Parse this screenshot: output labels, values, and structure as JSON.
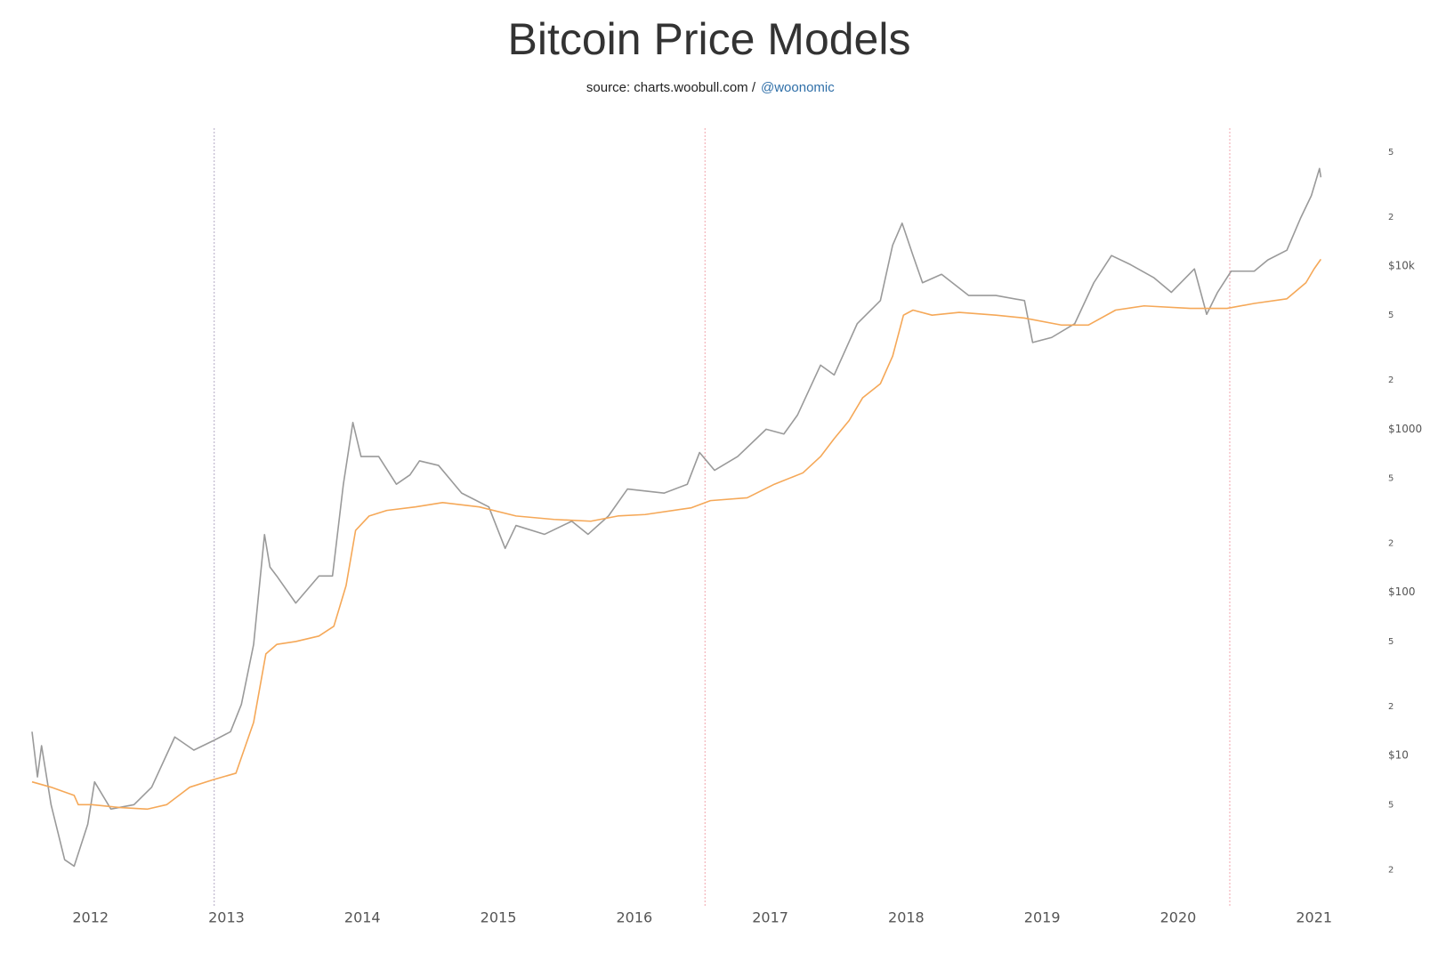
{
  "chart_data": {
    "type": "line",
    "title": "Bitcoin Price Models",
    "subtitle": {
      "source": "source: charts.woobull.com /",
      "handle": "@woonomic"
    },
    "log_scale": true,
    "grid": false,
    "xlim": [
      2011.57,
      2021.1
    ],
    "xticks": [
      2012,
      2013,
      2014,
      2015,
      2016,
      2017,
      2018,
      2019,
      2020,
      2021
    ],
    "ylim": [
      1.2,
      70000
    ],
    "yticks": [
      2,
      5,
      {
        "value": 10,
        "label": "$10"
      },
      {
        "value": 20,
        "label": "2"
      },
      {
        "value": 50,
        "label": "5"
      },
      {
        "value": 100,
        "label": "$100"
      },
      {
        "value": 200,
        "label": "2"
      },
      {
        "value": 500,
        "label": "5"
      },
      {
        "value": 1000,
        "label": "$1000"
      },
      {
        "value": 2000,
        "label": "2"
      },
      {
        "value": 5000,
        "label": "5"
      },
      {
        "value": 10000,
        "label": "$10k"
      },
      {
        "value": 20000,
        "label": "2"
      },
      {
        "value": 50000,
        "label": "5"
      }
    ],
    "vlines": [
      {
        "x": 2012.91,
        "color": "#b4a8c4"
      },
      {
        "x": 2016.52,
        "color": "#f0a4ac"
      },
      {
        "x": 2020.38,
        "color": "#f0a4ac"
      }
    ],
    "series": [
      {
        "color": "#9a9a9a",
        "x": [
          2011.57,
          2011.61,
          2011.64,
          2011.71,
          2011.81,
          2011.88,
          2011.98,
          2012.03,
          2012.15,
          2012.32,
          2012.45,
          2012.62,
          2012.76,
          2012.9,
          2013.03,
          2013.11,
          2013.2,
          2013.28,
          2013.32,
          2013.37,
          2013.51,
          2013.68,
          2013.78,
          2013.86,
          2013.93,
          2013.99,
          2014.12,
          2014.25,
          2014.35,
          2014.42,
          2014.56,
          2014.73,
          2014.93,
          2015.05,
          2015.13,
          2015.34,
          2015.54,
          2015.66,
          2015.81,
          2015.95,
          2016.22,
          2016.39,
          2016.48,
          2016.59,
          2016.76,
          2016.97,
          2017.1,
          2017.2,
          2017.37,
          2017.47,
          2017.64,
          2017.81,
          2017.9,
          2017.97,
          2018.05,
          2018.12,
          2018.26,
          2018.46,
          2018.66,
          2018.87,
          2018.93,
          2019.07,
          2019.24,
          2019.38,
          2019.51,
          2019.65,
          2019.82,
          2019.95,
          2020.12,
          2020.21,
          2020.29,
          2020.39,
          2020.56,
          2020.66,
          2020.8,
          2020.9,
          2020.98,
          2021.04,
          2021.05
        ],
        "values": [
          14,
          7.4,
          11.5,
          5,
          2.3,
          2.1,
          3.8,
          6.9,
          4.7,
          5,
          6.4,
          13,
          10.8,
          12.3,
          14,
          20.6,
          48,
          226,
          143,
          126,
          86,
          126,
          126,
          460,
          1100,
          680,
          680,
          460,
          525,
          640,
          600,
          406,
          334,
          186,
          257,
          227,
          273,
          227,
          294,
          430,
          406,
          460,
          720,
          560,
          680,
          1000,
          935,
          1220,
          2470,
          2150,
          4440,
          6140,
          13400,
          18300,
          11600,
          7900,
          8900,
          6600,
          6600,
          6140,
          3400,
          3650,
          4440,
          7900,
          11600,
          10200,
          8500,
          6900,
          9600,
          5060,
          6900,
          9300,
          9300,
          10900,
          12500,
          19600,
          27000,
          39600,
          35000
        ]
      },
      {
        "color": "#f5a858",
        "x": [
          2011.57,
          2011.71,
          2011.88,
          2011.91,
          2012.01,
          2012.22,
          2012.42,
          2012.56,
          2012.73,
          2012.9,
          2013.07,
          2013.2,
          2013.29,
          2013.37,
          2013.51,
          2013.68,
          2013.79,
          2013.88,
          2013.95,
          2014.05,
          2014.18,
          2014.39,
          2014.59,
          2014.86,
          2015.13,
          2015.41,
          2015.68,
          2015.88,
          2016.08,
          2016.42,
          2016.56,
          2016.83,
          2017.03,
          2017.24,
          2017.37,
          2017.47,
          2017.58,
          2017.68,
          2017.81,
          2017.9,
          2017.98,
          2018.05,
          2018.19,
          2018.39,
          2018.66,
          2018.87,
          2019.14,
          2019.34,
          2019.54,
          2019.75,
          2020.09,
          2020.36,
          2020.56,
          2020.8,
          2020.94,
          2021.0,
          2021.05
        ],
        "values": [
          6.9,
          6.4,
          5.7,
          5,
          5,
          4.8,
          4.7,
          5,
          6.4,
          7.1,
          7.8,
          16,
          42,
          48,
          50,
          54,
          62,
          110,
          240,
          294,
          318,
          334,
          355,
          334,
          294,
          280,
          273,
          294,
          300,
          330,
          365,
          380,
          460,
          540,
          680,
          875,
          1130,
          1560,
          1900,
          2800,
          5000,
          5370,
          5000,
          5200,
          5000,
          4800,
          4350,
          4350,
          5370,
          5700,
          5500,
          5500,
          5900,
          6300,
          7900,
          9600,
          11000
        ]
      }
    ]
  }
}
